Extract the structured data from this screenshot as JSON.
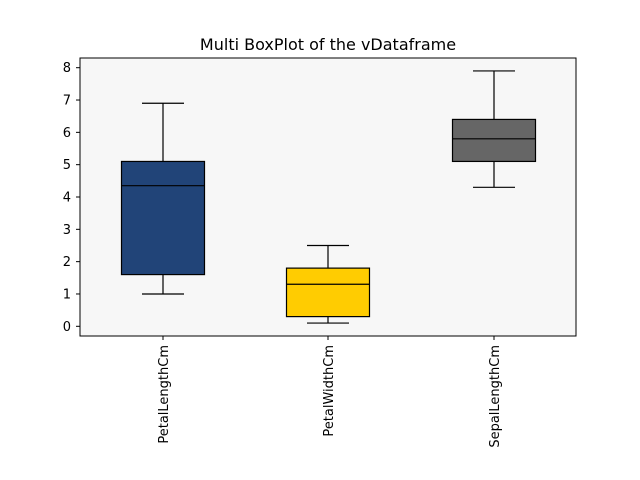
{
  "chart_data": {
    "type": "boxplot",
    "title": "Multi BoxPlot of the vDataframe",
    "xlabel": "",
    "ylabel": "",
    "ylim": [
      -0.3,
      8.3
    ],
    "yticks": [
      0,
      1,
      2,
      3,
      4,
      5,
      6,
      7,
      8
    ],
    "grid": false,
    "background_color": "#f7f7f7",
    "categories": [
      "PetalLengthCm",
      "PetalWidthCm",
      "SepalLengthCm"
    ],
    "boxes": [
      {
        "name": "PetalLengthCm",
        "min": 1.0,
        "q1": 1.6,
        "median": 4.35,
        "q3": 5.1,
        "max": 6.9,
        "color": "#214478"
      },
      {
        "name": "PetalWidthCm",
        "min": 0.1,
        "q1": 0.3,
        "median": 1.3,
        "q3": 1.8,
        "max": 2.5,
        "color": "#ffcc01"
      },
      {
        "name": "SepalLengthCm",
        "min": 4.3,
        "q1": 5.1,
        "median": 5.8,
        "q3": 6.4,
        "max": 7.9,
        "color": "#666666"
      }
    ]
  }
}
